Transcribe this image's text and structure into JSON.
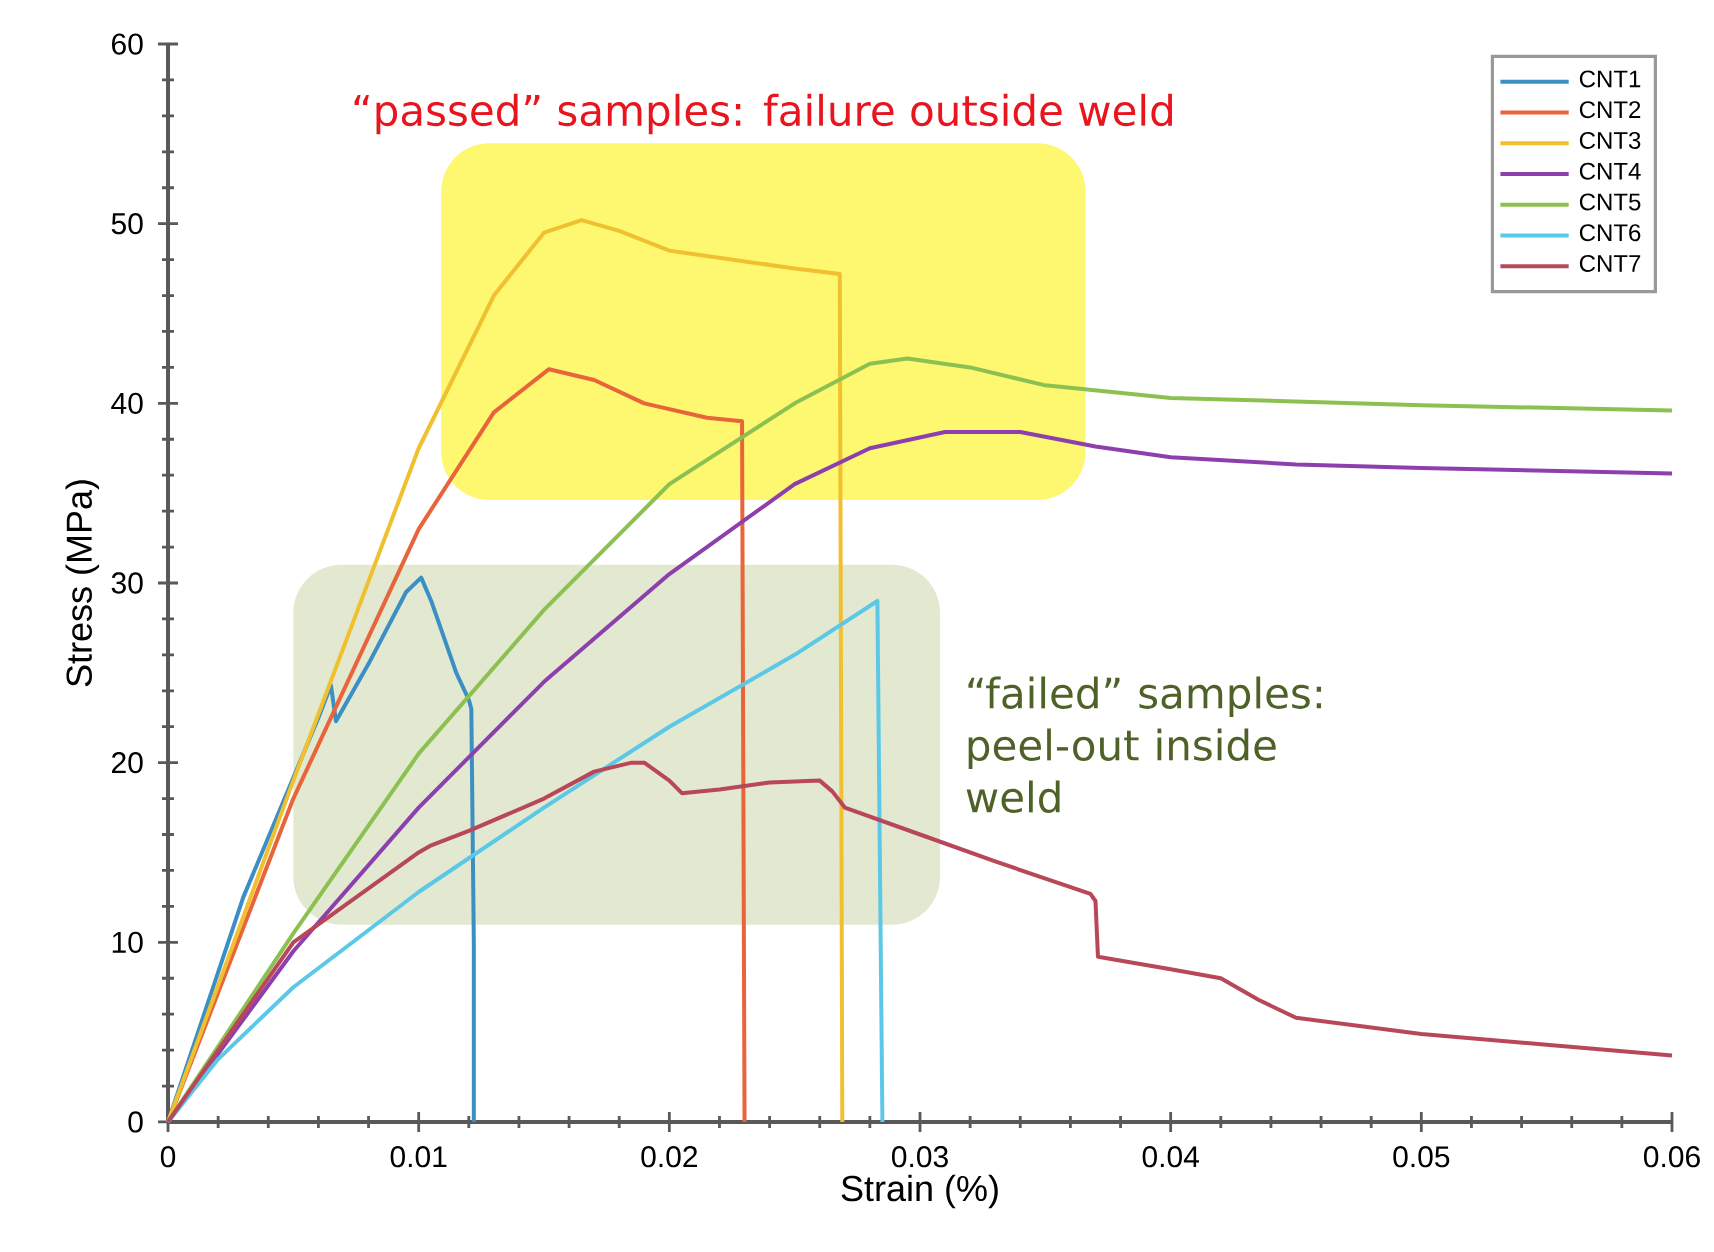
{
  "chart_data": {
    "type": "line",
    "xlabel": "Strain (%)",
    "ylabel": "Stress (MPa)",
    "xlim": [
      0,
      0.06
    ],
    "ylim": [
      0,
      60
    ],
    "xticks": [
      0,
      0.01,
      0.02,
      0.03,
      0.04,
      0.05,
      0.06
    ],
    "yticks": [
      0,
      10,
      20,
      30,
      40,
      50,
      60
    ],
    "legend": "top right",
    "grid": false,
    "marker": "none",
    "line_style": "solid",
    "series": [
      {
        "name": "CNT1",
        "color": "#3b8fc4",
        "x": [
          0,
          0.003,
          0.006,
          0.0065,
          0.0067,
          0.008,
          0.0095,
          0.0101,
          0.0105,
          0.011,
          0.0115,
          0.012,
          0.0121,
          0.0122,
          0.0122
        ],
        "values": [
          0,
          12.5,
          22.5,
          24.3,
          22.3,
          25.5,
          29.5,
          30.3,
          29,
          27,
          25,
          23.5,
          23,
          10,
          0
        ]
      },
      {
        "name": "CNT2",
        "color": "#e8643a",
        "x": [
          0,
          0.005,
          0.01,
          0.013,
          0.0152,
          0.017,
          0.019,
          0.0215,
          0.0229,
          0.023
        ],
        "values": [
          0,
          18,
          33,
          39.5,
          41.9,
          41.3,
          40,
          39.2,
          39,
          0
        ]
      },
      {
        "name": "CNT3",
        "color": "#f0c030",
        "x": [
          0,
          0.005,
          0.01,
          0.013,
          0.015,
          0.0165,
          0.018,
          0.02,
          0.025,
          0.0268,
          0.0269
        ],
        "values": [
          0,
          19,
          37.5,
          46,
          49.5,
          50.2,
          49.6,
          48.5,
          47.5,
          47.2,
          0
        ]
      },
      {
        "name": "CNT4",
        "color": "#8e3fae",
        "x": [
          0,
          0.005,
          0.01,
          0.015,
          0.02,
          0.025,
          0.028,
          0.031,
          0.034,
          0.037,
          0.04,
          0.045,
          0.05,
          0.06
        ],
        "values": [
          0,
          9.5,
          17.5,
          24.5,
          30.5,
          35.5,
          37.5,
          38.4,
          38.4,
          37.6,
          37,
          36.6,
          36.4,
          36.1
        ]
      },
      {
        "name": "CNT5",
        "color": "#8cc152",
        "x": [
          0,
          0.005,
          0.01,
          0.015,
          0.02,
          0.025,
          0.028,
          0.0295,
          0.032,
          0.035,
          0.04,
          0.05,
          0.06
        ],
        "values": [
          0,
          10.5,
          20.5,
          28.5,
          35.5,
          40,
          42.2,
          42.5,
          42,
          41,
          40.3,
          39.9,
          39.6
        ]
      },
      {
        "name": "CNT6",
        "color": "#5cc8e8",
        "x": [
          0,
          0.002,
          0.005,
          0.01,
          0.015,
          0.02,
          0.025,
          0.0283,
          0.0285
        ],
        "values": [
          0,
          3.5,
          7.5,
          12.8,
          17.5,
          22,
          26,
          29,
          0
        ]
      },
      {
        "name": "CNT7",
        "color": "#b8475a",
        "x": [
          0,
          0.005,
          0.01,
          0.0105,
          0.012,
          0.015,
          0.017,
          0.0185,
          0.019,
          0.02,
          0.0205,
          0.022,
          0.024,
          0.026,
          0.0265,
          0.027,
          0.03,
          0.033,
          0.0368,
          0.037,
          0.0371,
          0.04,
          0.042,
          0.0435,
          0.045,
          0.05,
          0.055,
          0.06
        ],
        "values": [
          0,
          10,
          15,
          15.4,
          16.2,
          18,
          19.5,
          20,
          20,
          19,
          18.3,
          18.5,
          18.9,
          19,
          18.4,
          17.5,
          16,
          14.5,
          12.7,
          12.3,
          9.2,
          8.5,
          8,
          6.8,
          5.8,
          4.9,
          4.3,
          3.7
        ]
      }
    ],
    "bands": [
      {
        "axis": "x",
        "from": 0.0109,
        "to": 0.0366,
        "color": "#fdf870",
        "label": "“passed” samples: failure outside weld"
      },
      {
        "axis": "x",
        "from": 0.005,
        "to": 0.0308,
        "color": "#e2e9d0",
        "label": "“failed” samples: peel-out inside weld"
      }
    ]
  }
}
